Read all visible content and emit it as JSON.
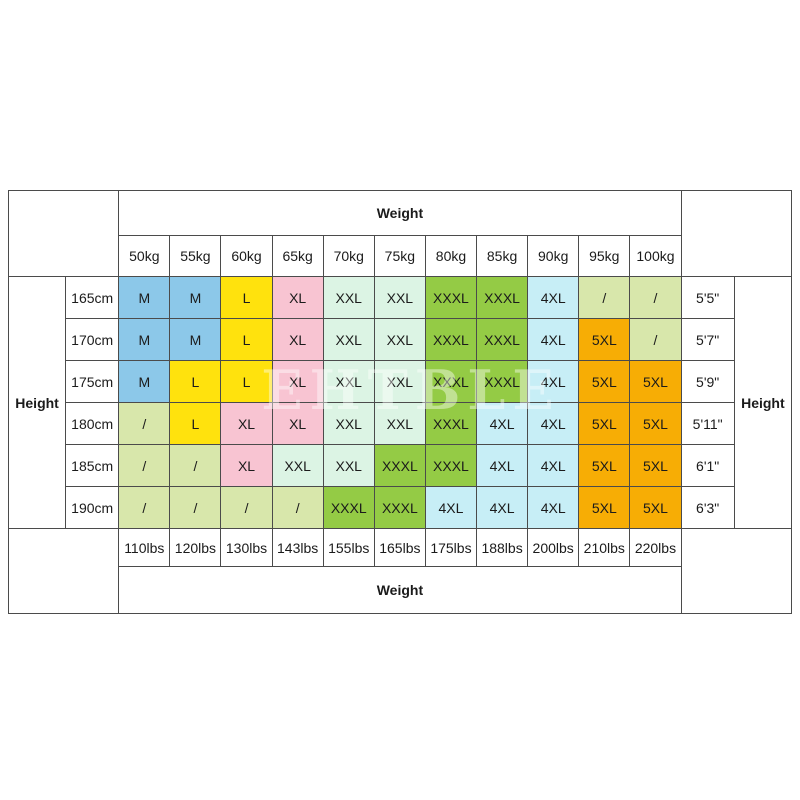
{
  "watermark": "EHTBLE",
  "chart_data": {
    "type": "table",
    "top_axis_label": "Weight",
    "bottom_axis_label": "Weight",
    "left_axis_label": "Height",
    "right_axis_label": "Height",
    "weight_kg": [
      "50kg",
      "55kg",
      "60kg",
      "65kg",
      "70kg",
      "75kg",
      "80kg",
      "85kg",
      "90kg",
      "95kg",
      "100kg"
    ],
    "weight_lbs": [
      "110lbs",
      "120lbs",
      "130lbs",
      "143lbs",
      "155lbs",
      "165lbs",
      "175lbs",
      "188lbs",
      "200lbs",
      "210lbs",
      "220lbs"
    ],
    "height_cm": [
      "165cm",
      "170cm",
      "175cm",
      "180cm",
      "185cm",
      "190cm"
    ],
    "height_ft": [
      "5'5\"",
      "5'7\"",
      "5'9\"",
      "5'11\"",
      "6'1\"",
      "6'3\""
    ],
    "sizes": [
      [
        "M",
        "M",
        "L",
        "XL",
        "XXL",
        "XXL",
        "XXXL",
        "XXXL",
        "4XL",
        "/",
        "/"
      ],
      [
        "M",
        "M",
        "L",
        "XL",
        "XXL",
        "XXL",
        "XXXL",
        "XXXL",
        "4XL",
        "5XL",
        "/"
      ],
      [
        "M",
        "L",
        "L",
        "XL",
        "XXL",
        "XXL",
        "XXXL",
        "XXXL",
        "4XL",
        "5XL",
        "5XL"
      ],
      [
        "/",
        "L",
        "XL",
        "XL",
        "XXL",
        "XXL",
        "XXXL",
        "4XL",
        "4XL",
        "5XL",
        "5XL"
      ],
      [
        "/",
        "/",
        "XL",
        "XXL",
        "XXL",
        "XXXL",
        "XXXL",
        "4XL",
        "4XL",
        "5XL",
        "5XL"
      ],
      [
        "/",
        "/",
        "/",
        "/",
        "XXXL",
        "XXXL",
        "4XL",
        "4XL",
        "4XL",
        "5XL",
        "5XL"
      ]
    ],
    "size_colors": {
      "M": "#8cc8e9",
      "L": "#ffe20d",
      "XL": "#f8c4d2",
      "XXL": "#dcf4e4",
      "XXXL": "#94cb45",
      "4XL": "#c7eef6",
      "5XL": "#f7ad05",
      "/": "#d8e7ab"
    }
  }
}
